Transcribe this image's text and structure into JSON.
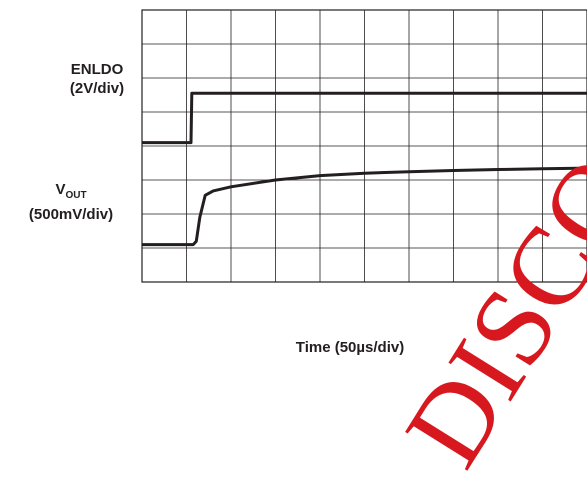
{
  "chart_data": {
    "type": "line",
    "title": "",
    "xlabel": "Time (50µs/div)",
    "xlim": [
      0,
      10
    ],
    "ylim": [
      0,
      8
    ],
    "x_divisions": 10,
    "y_divisions": 8,
    "grid": true,
    "series": [
      {
        "name": "ENLDO",
        "name_main": "ENLDO",
        "scale": "(2V/div)",
        "color": "#231f20",
        "points": [
          [
            0,
            4.1
          ],
          [
            1.05,
            4.1
          ],
          [
            1.1,
            4.1
          ],
          [
            1.12,
            5.55
          ],
          [
            1.15,
            5.55
          ],
          [
            10,
            5.55
          ]
        ]
      },
      {
        "name": "VOUT",
        "name_main": "V",
        "name_sub": "OUT",
        "scale": "(500mV/div)",
        "color": "#231f20",
        "points": [
          [
            0,
            1.1
          ],
          [
            1.15,
            1.1
          ],
          [
            1.22,
            1.2
          ],
          [
            1.3,
            1.9
          ],
          [
            1.42,
            2.55
          ],
          [
            1.6,
            2.68
          ],
          [
            2.0,
            2.8
          ],
          [
            3.0,
            3.0
          ],
          [
            4.0,
            3.13
          ],
          [
            5.0,
            3.2
          ],
          [
            6.0,
            3.24
          ],
          [
            7.0,
            3.28
          ],
          [
            8.0,
            3.31
          ],
          [
            9.0,
            3.33
          ],
          [
            10,
            3.35
          ]
        ]
      }
    ]
  },
  "watermark": {
    "text": "DISCO",
    "color": "#d7191f"
  }
}
